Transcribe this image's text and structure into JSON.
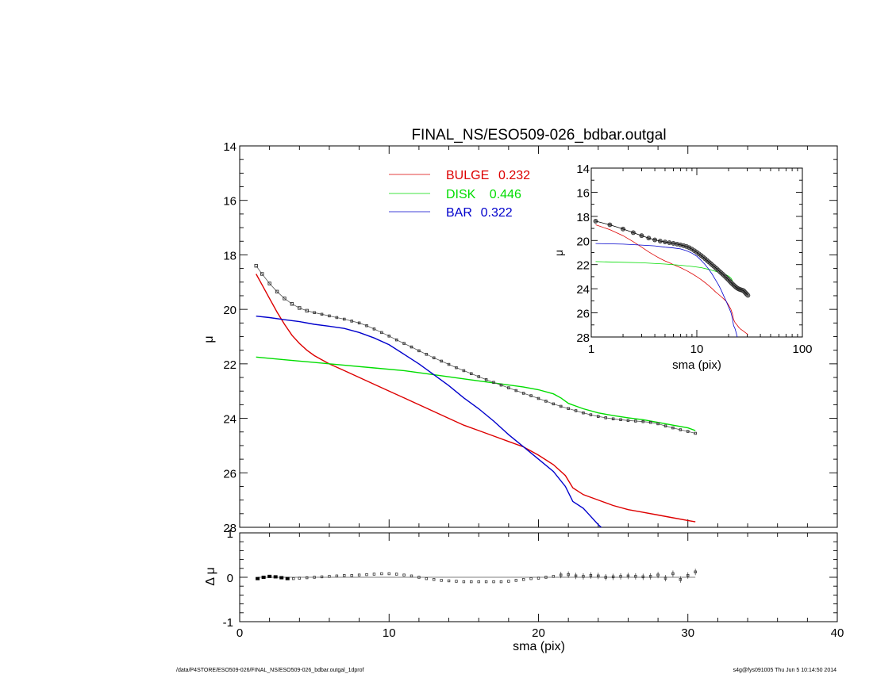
{
  "chart_data": [
    {
      "id": "main",
      "type": "line",
      "title": "FINAL_NS/ESO509-026_bdbar.outgal",
      "xlabel": "",
      "ylabel": "μ",
      "xlim": [
        0,
        40
      ],
      "ylim": [
        28,
        14
      ],
      "y_inverted": true,
      "yticks": [
        14,
        16,
        18,
        20,
        22,
        24,
        26,
        28
      ],
      "legend_position": "top-center",
      "legend": [
        {
          "name": "BULGE",
          "value": "0.232",
          "color": "#dd0000"
        },
        {
          "name": "DISK",
          "value": "0.446",
          "color": "#00dd00"
        },
        {
          "name": "BAR",
          "value": "0.322",
          "color": "#0000cc"
        }
      ],
      "data_points": {
        "marker": "square",
        "x": [
          1.1,
          1.5,
          2.0,
          2.5,
          3.0,
          3.5,
          4.0,
          4.5,
          5.0,
          5.5,
          6.0,
          6.5,
          7.0,
          7.5,
          8.0,
          8.5,
          9.0,
          9.5,
          10.0,
          10.5,
          11.0,
          11.5,
          12.0,
          12.5,
          13.0,
          13.5,
          14.0,
          14.5,
          15.0,
          15.5,
          16.0,
          16.5,
          17.0,
          17.5,
          18.0,
          18.5,
          19.0,
          19.5,
          20.0,
          20.5,
          21.0,
          21.5,
          22.0,
          22.5,
          23.0,
          23.5,
          24.0,
          24.5,
          25.0,
          25.5,
          26.0,
          26.5,
          27.0,
          27.5,
          28.0,
          28.5,
          29.0,
          29.5,
          30.0,
          30.5
        ],
        "y": [
          18.4,
          18.7,
          19.05,
          19.35,
          19.6,
          19.8,
          19.95,
          20.05,
          20.12,
          20.18,
          20.24,
          20.3,
          20.36,
          20.43,
          20.5,
          20.6,
          20.72,
          20.85,
          20.98,
          21.12,
          21.25,
          21.38,
          21.52,
          21.65,
          21.78,
          21.9,
          22.02,
          22.14,
          22.25,
          22.36,
          22.47,
          22.58,
          22.68,
          22.78,
          22.88,
          22.98,
          23.08,
          23.17,
          23.27,
          23.37,
          23.47,
          23.56,
          23.64,
          23.72,
          23.8,
          23.87,
          23.93,
          23.98,
          24.02,
          24.05,
          24.08,
          24.1,
          24.12,
          24.15,
          24.2,
          24.28,
          24.35,
          24.42,
          24.48,
          24.55
        ]
      },
      "series": [
        {
          "name": "BULGE",
          "color": "#dd0000",
          "x": [
            1.1,
            1.5,
            2.0,
            2.5,
            3.0,
            3.5,
            4.0,
            4.5,
            5.0,
            5.5,
            6.0,
            7.0,
            8.0,
            9.0,
            10.0,
            11.0,
            12.0,
            13.0,
            14.0,
            15.0,
            16.0,
            17.0,
            18.0,
            19.0,
            20.0,
            21.0,
            21.8,
            22.3,
            23.0,
            24.0,
            25.0,
            26.0,
            27.0,
            28.0,
            29.0,
            30.0,
            30.5
          ],
          "y": [
            18.7,
            19.1,
            19.6,
            20.1,
            20.55,
            20.95,
            21.25,
            21.5,
            21.7,
            21.85,
            22.0,
            22.25,
            22.5,
            22.75,
            23.0,
            23.25,
            23.5,
            23.75,
            24.0,
            24.25,
            24.45,
            24.65,
            24.85,
            25.05,
            25.35,
            25.7,
            26.1,
            26.55,
            26.8,
            27.0,
            27.2,
            27.35,
            27.45,
            27.55,
            27.65,
            27.75,
            27.8
          ]
        },
        {
          "name": "DISK",
          "color": "#00dd00",
          "x": [
            1.1,
            3.0,
            5.0,
            7.0,
            9.0,
            11.0,
            13.0,
            15.0,
            17.0,
            19.0,
            20.0,
            21.0,
            21.5,
            22.0,
            22.5,
            23.0,
            24.0,
            25.0,
            26.0,
            27.0,
            28.0,
            29.0,
            30.0,
            30.5
          ],
          "y": [
            21.75,
            21.85,
            21.95,
            22.05,
            22.15,
            22.25,
            22.4,
            22.55,
            22.7,
            22.85,
            22.95,
            23.1,
            23.25,
            23.45,
            23.55,
            23.65,
            23.8,
            23.9,
            23.98,
            24.05,
            24.15,
            24.25,
            24.35,
            24.45
          ]
        },
        {
          "name": "BAR",
          "color": "#0000cc",
          "x": [
            1.1,
            2.0,
            3.0,
            4.0,
            5.0,
            6.0,
            7.0,
            8.0,
            9.0,
            10.0,
            11.0,
            12.0,
            13.0,
            14.0,
            15.0,
            16.0,
            17.0,
            18.0,
            19.0,
            20.0,
            21.0,
            21.8,
            22.3,
            23.0,
            23.5,
            24.0,
            24.2
          ],
          "y": [
            20.25,
            20.3,
            20.38,
            20.45,
            20.55,
            20.62,
            20.7,
            20.85,
            21.05,
            21.3,
            21.65,
            22.0,
            22.4,
            22.8,
            23.25,
            23.65,
            24.1,
            24.6,
            25.05,
            25.5,
            25.95,
            26.5,
            27.05,
            27.3,
            27.6,
            27.9,
            28.0
          ]
        }
      ]
    },
    {
      "id": "residual",
      "type": "scatter",
      "xlabel": "sma (pix)",
      "ylabel": "Δ μ",
      "xlim": [
        0,
        40
      ],
      "ylim": [
        -1,
        1
      ],
      "xticks": [
        0,
        10,
        20,
        30,
        40
      ],
      "yticks": [
        -1,
        0,
        1
      ],
      "x": [
        1.2,
        1.6,
        2.0,
        2.4,
        2.8,
        3.2,
        3.6,
        4.0,
        4.5,
        5.0,
        5.5,
        6.0,
        6.5,
        7.0,
        7.5,
        8.0,
        8.5,
        9.0,
        9.5,
        10.0,
        10.5,
        11.0,
        11.5,
        12.0,
        12.5,
        13.0,
        13.5,
        14.0,
        14.5,
        15.0,
        15.5,
        16.0,
        16.5,
        17.0,
        17.5,
        18.0,
        18.5,
        19.0,
        19.5,
        20.0,
        20.5,
        21.0,
        21.5,
        22.0,
        22.5,
        23.0,
        23.5,
        24.0,
        24.5,
        25.0,
        25.5,
        26.0,
        26.5,
        27.0,
        27.5,
        28.0,
        28.5,
        29.0,
        29.5,
        30.0,
        30.5
      ],
      "y": [
        -0.03,
        0.0,
        0.02,
        0.01,
        -0.01,
        -0.03,
        -0.03,
        -0.02,
        -0.01,
        0.0,
        0.01,
        0.02,
        0.03,
        0.04,
        0.04,
        0.05,
        0.06,
        0.07,
        0.08,
        0.08,
        0.07,
        0.05,
        0.03,
        0.0,
        -0.03,
        -0.05,
        -0.07,
        -0.08,
        -0.09,
        -0.1,
        -0.1,
        -0.1,
        -0.1,
        -0.1,
        -0.1,
        -0.09,
        -0.07,
        -0.05,
        -0.03,
        -0.02,
        0.0,
        0.02,
        0.05,
        0.06,
        0.03,
        0.02,
        0.04,
        0.03,
        0.0,
        0.01,
        0.02,
        0.03,
        0.02,
        0.01,
        0.02,
        0.05,
        -0.02,
        0.08,
        -0.05,
        0.04,
        0.12
      ]
    },
    {
      "id": "inset",
      "type": "line",
      "xlabel": "sma (pix)",
      "ylabel": "μ",
      "x_scale": "log",
      "xlim": [
        1,
        100
      ],
      "ylim": [
        28,
        14
      ],
      "y_inverted": true,
      "xticks": [
        1,
        10,
        100
      ],
      "xtick_labels": [
        "1",
        "10",
        "100"
      ],
      "yticks": [
        14,
        16,
        18,
        20,
        22,
        24,
        26,
        28
      ]
    }
  ],
  "footer": {
    "left": "/data/P4STORE/ESO509-026/FINAL_NS/ESO509-026_bdbar.outgal_1dprof",
    "right": "s4g@fys091005  Thu Jun  5 10:14:50 2014"
  }
}
